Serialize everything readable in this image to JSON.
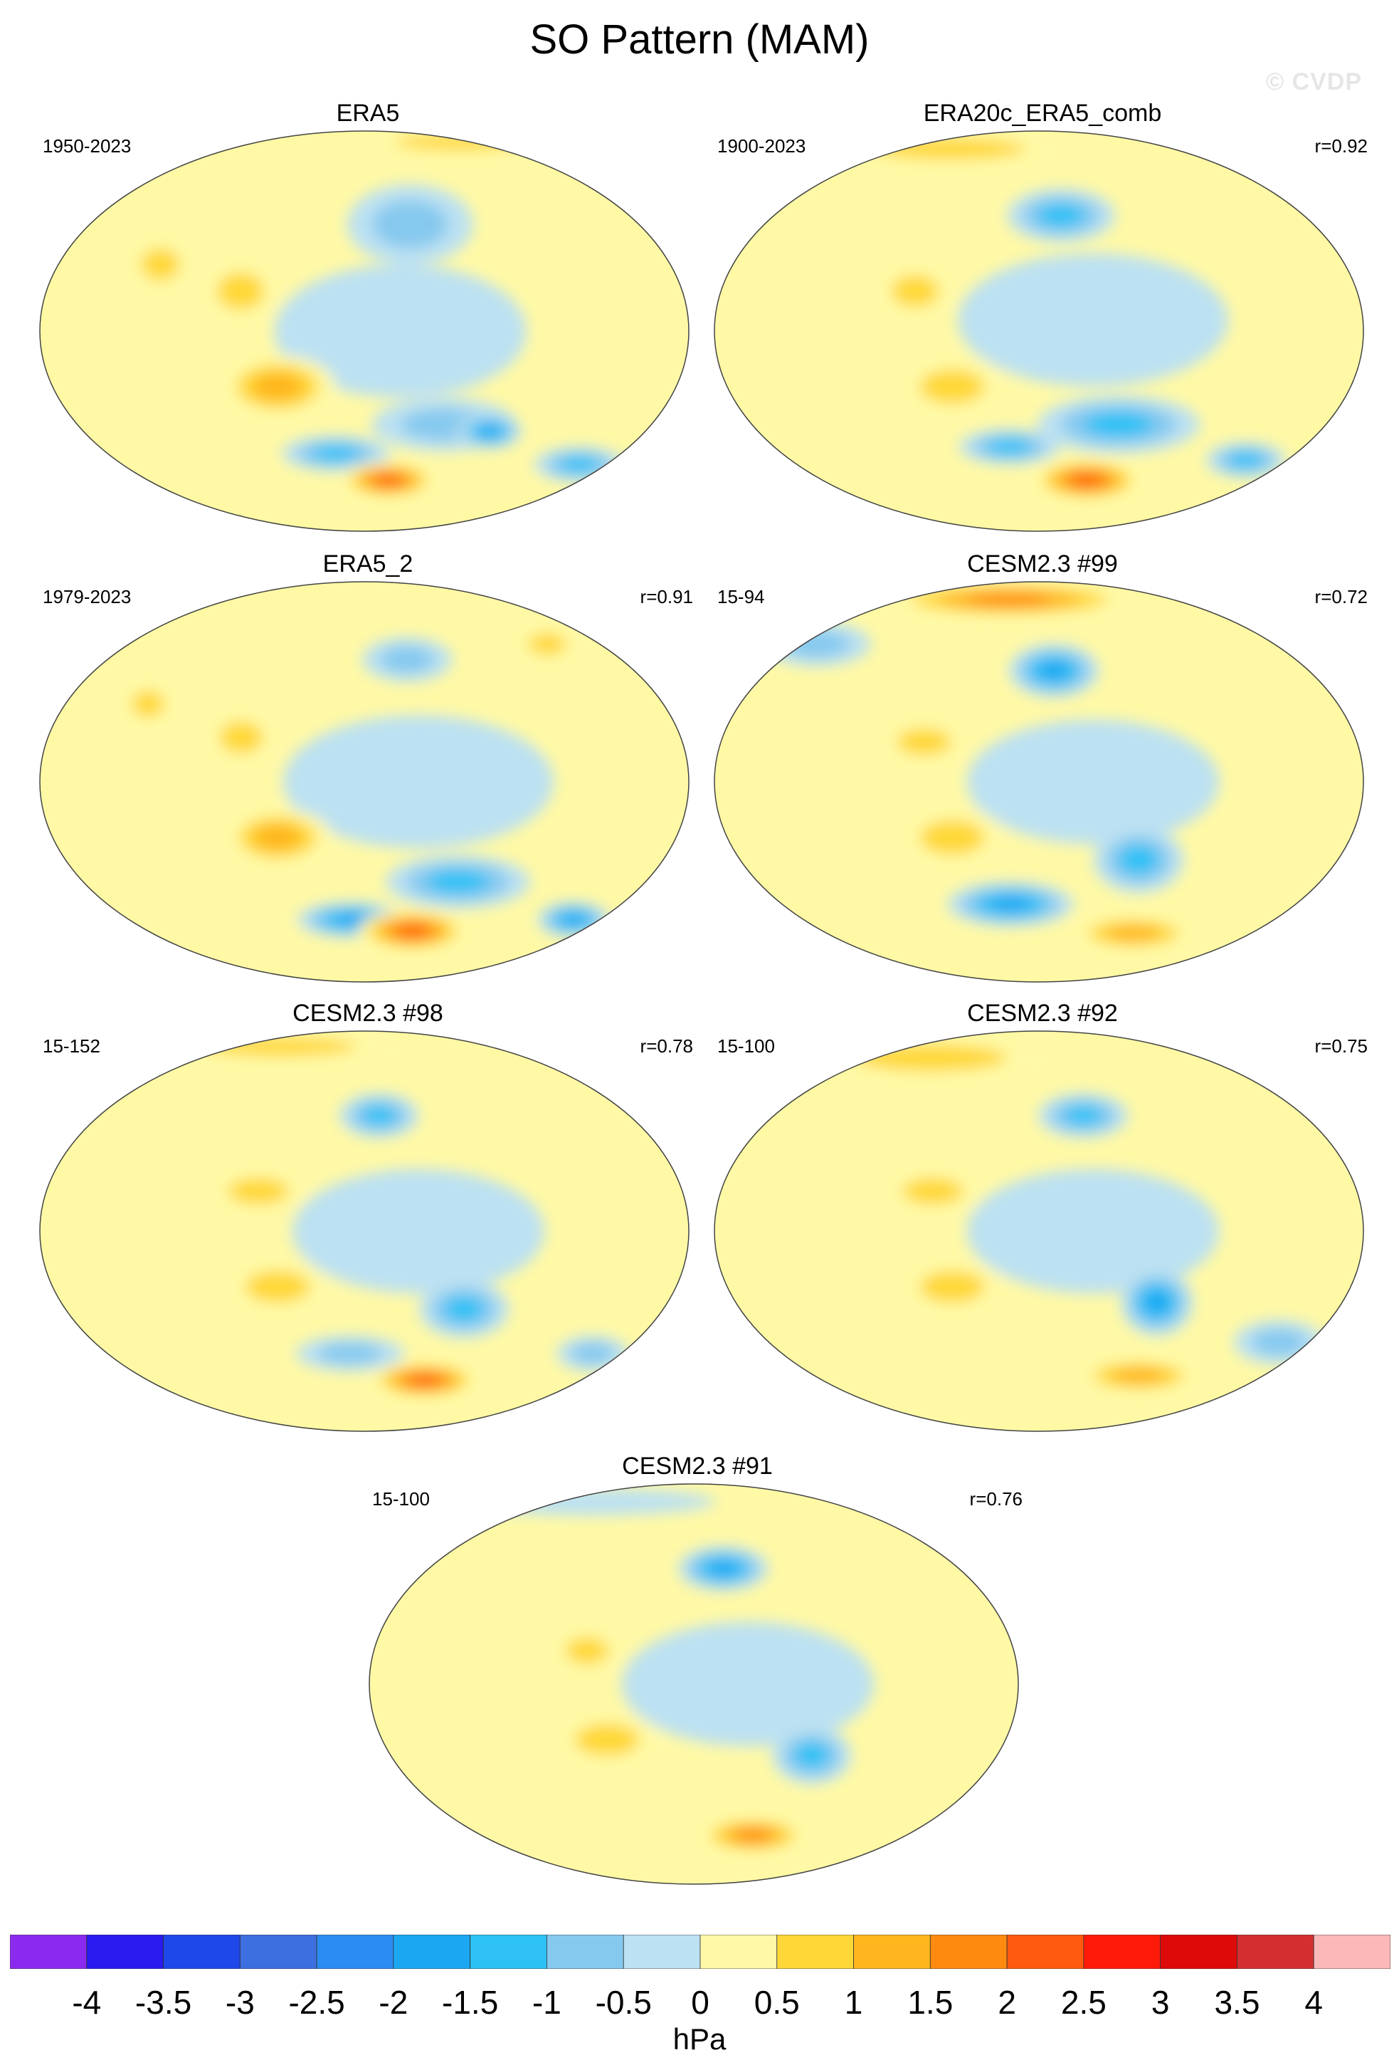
{
  "title": "SO Pattern (MAM)",
  "watermark": "© CVDP",
  "panels": [
    {
      "title": "ERA5",
      "period": "1950-2023",
      "corr": "",
      "features": [
        {
          "lon": -160,
          "lat": -67,
          "rx": 26,
          "ry": 8,
          "value": 2.3
        },
        {
          "lon": 130,
          "lat": -25,
          "rx": 32,
          "ry": 14,
          "value": 1.1
        },
        {
          "lon": 110,
          "lat": 18,
          "rx": 22,
          "ry": 14,
          "value": 0.9
        },
        {
          "lon": 60,
          "lat": 30,
          "rx": 18,
          "ry": 12,
          "value": 0.7
        },
        {
          "lon": -20,
          "lat": 85,
          "rx": 60,
          "ry": 6,
          "value": 0.8
        },
        {
          "lon": -150,
          "lat": 48,
          "rx": 35,
          "ry": 18,
          "value": -0.7
        },
        {
          "lon": -130,
          "lat": -42,
          "rx": 40,
          "ry": 12,
          "value": -1.0
        },
        {
          "lon": 160,
          "lat": -55,
          "rx": 30,
          "ry": 8,
          "value": -1.4
        },
        {
          "lon": -100,
          "lat": -45,
          "rx": 18,
          "ry": 8,
          "value": -1.8
        },
        {
          "lon": -20,
          "lat": -60,
          "rx": 25,
          "ry": 8,
          "value": -1.3
        },
        {
          "lon": -160,
          "lat": 0,
          "rx": 70,
          "ry": 30,
          "value": -0.4
        }
      ]
    },
    {
      "title": "ERA20c_ERA5_comb",
      "period": "1900-2023",
      "corr": "r=0.92",
      "features": [
        {
          "lon": -140,
          "lat": -67,
          "rx": 30,
          "ry": 9,
          "value": 2.1
        },
        {
          "lon": 130,
          "lat": -25,
          "rx": 30,
          "ry": 13,
          "value": 1.0
        },
        {
          "lon": 110,
          "lat": 18,
          "rx": 22,
          "ry": 12,
          "value": 0.8
        },
        {
          "lon": 60,
          "lat": 82,
          "rx": 70,
          "ry": 8,
          "value": 0.7
        },
        {
          "lon": -165,
          "lat": 52,
          "rx": 30,
          "ry": 12,
          "value": -1.4
        },
        {
          "lon": -130,
          "lat": -42,
          "rx": 45,
          "ry": 13,
          "value": -1.1
        },
        {
          "lon": 160,
          "lat": -52,
          "rx": 28,
          "ry": 8,
          "value": -1.3
        },
        {
          "lon": -30,
          "lat": -58,
          "rx": 22,
          "ry": 8,
          "value": -1.5
        },
        {
          "lon": -150,
          "lat": 5,
          "rx": 75,
          "ry": 30,
          "value": -0.4
        }
      ]
    },
    {
      "title": "ERA5_2",
      "period": "1979-2023",
      "corr": "r=0.91",
      "features": [
        {
          "lon": -140,
          "lat": -67,
          "rx": 30,
          "ry": 9,
          "value": 2.4
        },
        {
          "lon": 130,
          "lat": -25,
          "rx": 30,
          "ry": 13,
          "value": 1.1
        },
        {
          "lon": 110,
          "lat": 20,
          "rx": 20,
          "ry": 12,
          "value": 0.8
        },
        {
          "lon": 50,
          "lat": 35,
          "rx": 15,
          "ry": 10,
          "value": 0.9
        },
        {
          "lon": -40,
          "lat": 62,
          "rx": 18,
          "ry": 8,
          "value": 0.8
        },
        {
          "lon": -150,
          "lat": 55,
          "rx": 25,
          "ry": 10,
          "value": -0.9
        },
        {
          "lon": -120,
          "lat": -45,
          "rx": 40,
          "ry": 12,
          "value": -1.2
        },
        {
          "lon": 170,
          "lat": -62,
          "rx": 30,
          "ry": 8,
          "value": -1.6
        },
        {
          "lon": -20,
          "lat": -62,
          "rx": 20,
          "ry": 8,
          "value": -1.7
        },
        {
          "lon": -150,
          "lat": 0,
          "rx": 75,
          "ry": 30,
          "value": -0.4
        }
      ]
    },
    {
      "title": "CESM2.3 #99",
      "period": "15-94",
      "corr": "r=0.72",
      "features": [
        {
          "lon": 140,
          "lat": 82,
          "rx": 70,
          "ry": 8,
          "value": 2.0
        },
        {
          "lon": 130,
          "lat": -25,
          "rx": 30,
          "ry": 13,
          "value": 1.0
        },
        {
          "lon": 115,
          "lat": 18,
          "rx": 25,
          "ry": 10,
          "value": 0.9
        },
        {
          "lon": -100,
          "lat": -68,
          "rx": 35,
          "ry": 8,
          "value": 1.1
        },
        {
          "lon": -170,
          "lat": 50,
          "rx": 25,
          "ry": 12,
          "value": -1.6
        },
        {
          "lon": -120,
          "lat": -35,
          "rx": 25,
          "ry": 15,
          "value": -1.5
        },
        {
          "lon": 160,
          "lat": -55,
          "rx": 35,
          "ry": 10,
          "value": -1.6
        },
        {
          "lon": 10,
          "lat": 62,
          "rx": 30,
          "ry": 10,
          "value": -0.6
        },
        {
          "lon": -150,
          "lat": 0,
          "rx": 70,
          "ry": 28,
          "value": -0.4
        }
      ]
    },
    {
      "title": "CESM2.3 #98",
      "period": "15-152",
      "corr": "r=0.78",
      "features": [
        {
          "lon": -130,
          "lat": -67,
          "rx": 30,
          "ry": 8,
          "value": 2.1
        },
        {
          "lon": 130,
          "lat": -25,
          "rx": 30,
          "ry": 12,
          "value": 1.0
        },
        {
          "lon": 120,
          "lat": 18,
          "rx": 28,
          "ry": 10,
          "value": 0.9
        },
        {
          "lon": 60,
          "lat": 83,
          "rx": 70,
          "ry": 7,
          "value": 0.9
        },
        {
          "lon": -170,
          "lat": 52,
          "rx": 22,
          "ry": 10,
          "value": -1.5
        },
        {
          "lon": -120,
          "lat": -35,
          "rx": 25,
          "ry": 13,
          "value": -1.4
        },
        {
          "lon": 170,
          "lat": -55,
          "rx": 30,
          "ry": 8,
          "value": -0.8
        },
        {
          "lon": -20,
          "lat": -55,
          "rx": 20,
          "ry": 8,
          "value": -0.8
        },
        {
          "lon": -150,
          "lat": 0,
          "rx": 70,
          "ry": 28,
          "value": -0.4
        }
      ]
    },
    {
      "title": "CESM2.3 #92",
      "period": "15-100",
      "corr": "r=0.75",
      "features": [
        {
          "lon": -100,
          "lat": -65,
          "rx": 35,
          "ry": 8,
          "value": 1.4
        },
        {
          "lon": 130,
          "lat": -25,
          "rx": 30,
          "ry": 12,
          "value": 1.0
        },
        {
          "lon": 120,
          "lat": 18,
          "rx": 28,
          "ry": 10,
          "value": 0.9
        },
        {
          "lon": 60,
          "lat": 78,
          "rx": 70,
          "ry": 10,
          "value": 1.0
        },
        {
          "lon": -150,
          "lat": 52,
          "rx": 25,
          "ry": 10,
          "value": -1.3
        },
        {
          "lon": -110,
          "lat": -32,
          "rx": 20,
          "ry": 15,
          "value": -1.6
        },
        {
          "lon": -20,
          "lat": -50,
          "rx": 25,
          "ry": 10,
          "value": -1.0
        },
        {
          "lon": -150,
          "lat": 0,
          "rx": 70,
          "ry": 28,
          "value": -0.4
        }
      ]
    },
    {
      "title": "CESM2.3 #91",
      "period": "15-100",
      "corr": "r=0.76",
      "features": [
        {
          "lon": -130,
          "lat": -68,
          "rx": 30,
          "ry": 8,
          "value": 1.8
        },
        {
          "lon": 130,
          "lat": -25,
          "rx": 30,
          "ry": 12,
          "value": 1.0
        },
        {
          "lon": 120,
          "lat": 15,
          "rx": 20,
          "ry": 10,
          "value": 0.8
        },
        {
          "lon": -160,
          "lat": 52,
          "rx": 25,
          "ry": 10,
          "value": -1.6
        },
        {
          "lon": -110,
          "lat": -32,
          "rx": 22,
          "ry": 13,
          "value": -1.4
        },
        {
          "lon": 40,
          "lat": 82,
          "rx": 70,
          "ry": 6,
          "value": -0.5
        },
        {
          "lon": -150,
          "lat": 0,
          "rx": 70,
          "ry": 28,
          "value": -0.4
        }
      ]
    }
  ],
  "colorbar": {
    "colors": [
      "#8B2AEF",
      "#2A1AEF",
      "#1F48E8",
      "#3E6FE0",
      "#2B8CF2",
      "#1CA7F2",
      "#2EC1F5",
      "#86C9EF",
      "#BCE1F2",
      "#FFF9A6",
      "#FFD838",
      "#FFB61E",
      "#FF8A10",
      "#FF5A0F",
      "#FF1A0A",
      "#DE0A0A",
      "#D42F30",
      "#FCB8B8"
    ],
    "labels": [
      "-4",
      "-3.5",
      "-3",
      "-2.5",
      "-2",
      "-1.5",
      "-1",
      "-0.5",
      "0",
      "0.5",
      "1",
      "1.5",
      "2",
      "2.5",
      "3",
      "3.5",
      "4"
    ],
    "units": "hPa"
  }
}
